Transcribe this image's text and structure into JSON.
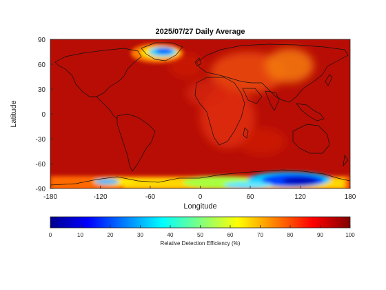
{
  "map": {
    "title": "2025/07/27 Daily Average",
    "xlabel": "Longitude",
    "ylabel": "Latitude",
    "x_ticks": [
      "-180",
      "-120",
      "-60",
      "0",
      "60",
      "120",
      "180"
    ],
    "y_ticks": [
      "90",
      "60",
      "30",
      "0",
      "-30",
      "-60",
      "-90"
    ],
    "x_range": [
      -180,
      180
    ],
    "y_range": [
      -90,
      90
    ],
    "colormap": "jet",
    "colorbar": {
      "label": "Relative Detection Efficiency (%)",
      "ticks": [
        "0",
        "10",
        "20",
        "30",
        "40",
        "50",
        "60",
        "70",
        "80",
        "90",
        "100"
      ],
      "range": [
        0,
        100
      ]
    },
    "background_efficiency": 98
  }
}
